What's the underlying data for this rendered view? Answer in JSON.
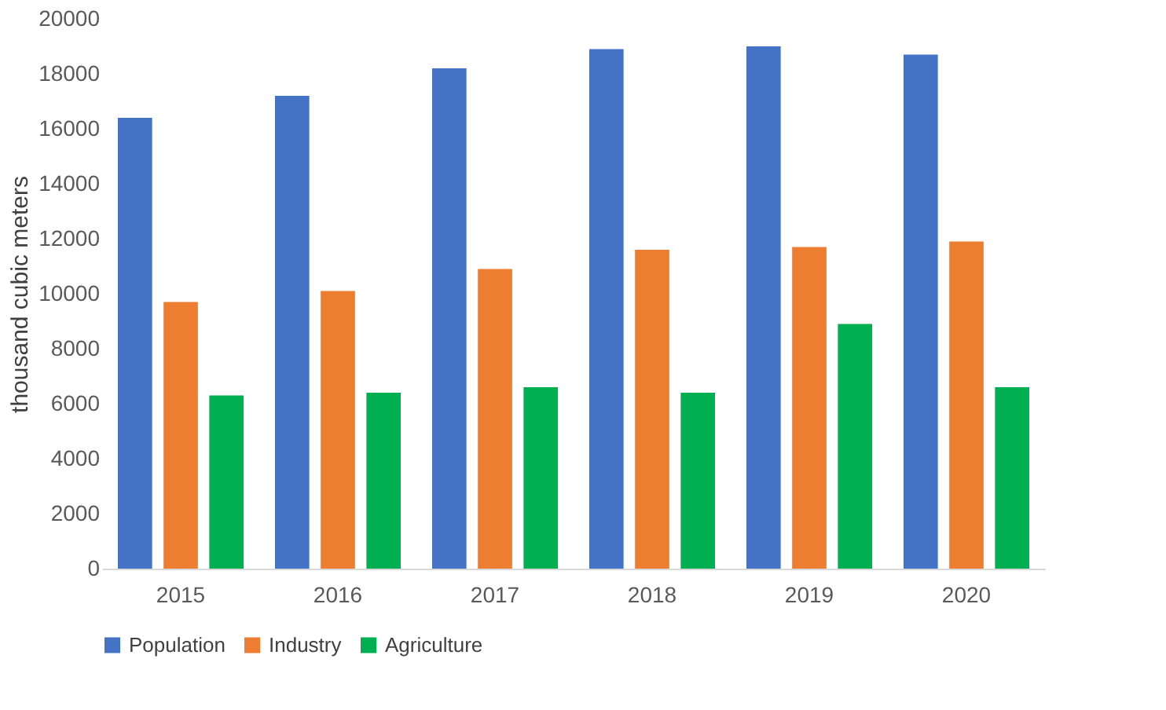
{
  "chart_data": {
    "type": "bar",
    "ylabel": "thousand cubic meters",
    "categories": [
      "2015",
      "2016",
      "2017",
      "2018",
      "2019",
      "2020"
    ],
    "series": [
      {
        "name": "Population",
        "color": "#4472c4",
        "values": [
          16400,
          17200,
          18200,
          18900,
          19000,
          18700
        ]
      },
      {
        "name": "Industry",
        "color": "#ed7d31",
        "values": [
          9700,
          10100,
          10900,
          11600,
          11700,
          11900
        ]
      },
      {
        "name": "Agriculture",
        "color": "#00b050",
        "values": [
          6300,
          6400,
          6600,
          6400,
          8900,
          6600
        ]
      }
    ],
    "ylim": [
      0,
      20000
    ],
    "yticks": [
      0,
      2000,
      4000,
      6000,
      8000,
      10000,
      12000,
      14000,
      16000,
      18000,
      20000
    ],
    "grid": false,
    "legend": "bottom"
  }
}
